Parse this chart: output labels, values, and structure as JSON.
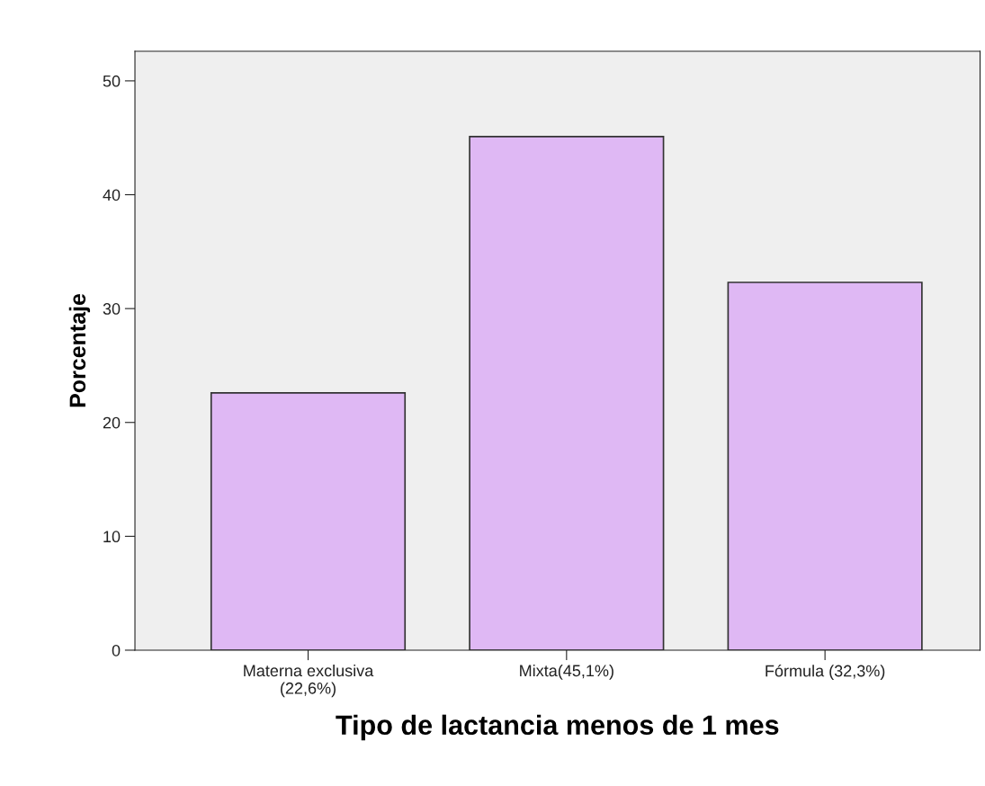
{
  "chart_data": {
    "type": "bar",
    "xlabel": "Tipo de lactancia menos de 1 mes",
    "ylabel": "Porcentaje",
    "categories": [
      "Materna exclusiva\n(22,6%)",
      "Mixta(45,1%)",
      "Fórmula (32,3%)"
    ],
    "values": [
      22.6,
      45.1,
      32.3
    ],
    "color": "#dfb8f4",
    "ylim": [
      0,
      52.6
    ],
    "yticks": [
      0,
      10,
      20,
      30,
      40,
      50
    ],
    "grid": false,
    "legend": false
  }
}
